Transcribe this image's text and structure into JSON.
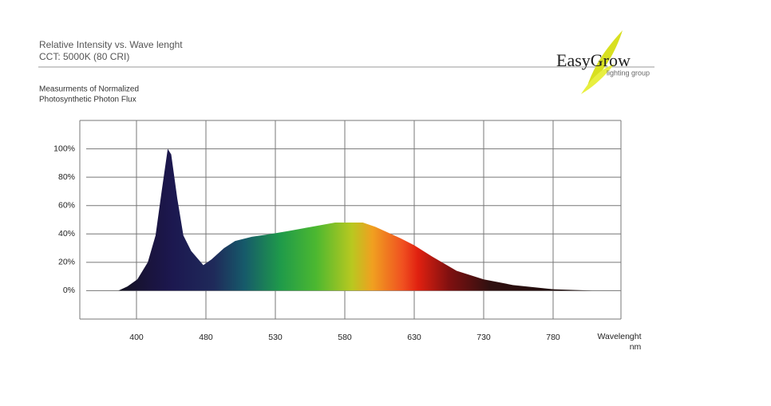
{
  "header": {
    "title": "Relative Intensity vs. Wave lenght",
    "subtitle": "CCT: 5000K (80 CRI)"
  },
  "logo": {
    "name": "EasyGrow",
    "tagline": "lighting group"
  },
  "chart_data": {
    "type": "area",
    "title": "Measurments of Normalized",
    "subtitle": "Photosynthetic Photon Flux",
    "x_label": "Wavelenght",
    "x_unit": "nm",
    "x": [
      384,
      392,
      401,
      413,
      422,
      429,
      436,
      440,
      447,
      454,
      463,
      477,
      484,
      493,
      501,
      513,
      527,
      539,
      556,
      573,
      593,
      602,
      620,
      630,
      656,
      691,
      730,
      751,
      780,
      809,
      830
    ],
    "values": [
      0,
      3,
      8,
      20,
      39,
      70,
      100,
      96,
      65,
      39,
      28,
      18,
      22,
      30,
      35,
      38,
      40,
      42,
      45,
      48,
      48,
      45,
      37,
      32,
      24,
      14,
      8,
      4,
      1,
      0,
      0
    ],
    "xlim": [
      350,
      830
    ],
    "xticks": [
      400,
      480,
      530,
      580,
      630,
      730,
      780
    ],
    "ylim": [
      -20,
      120
    ],
    "yticks": [
      {
        "value": 0,
        "label": "0%"
      },
      {
        "value": 20,
        "label": "20%"
      },
      {
        "value": 40,
        "label": "40%"
      },
      {
        "value": 60,
        "label": "60%"
      },
      {
        "value": 80,
        "label": "80%"
      },
      {
        "value": 100,
        "label": "100%"
      }
    ],
    "grid": true
  }
}
